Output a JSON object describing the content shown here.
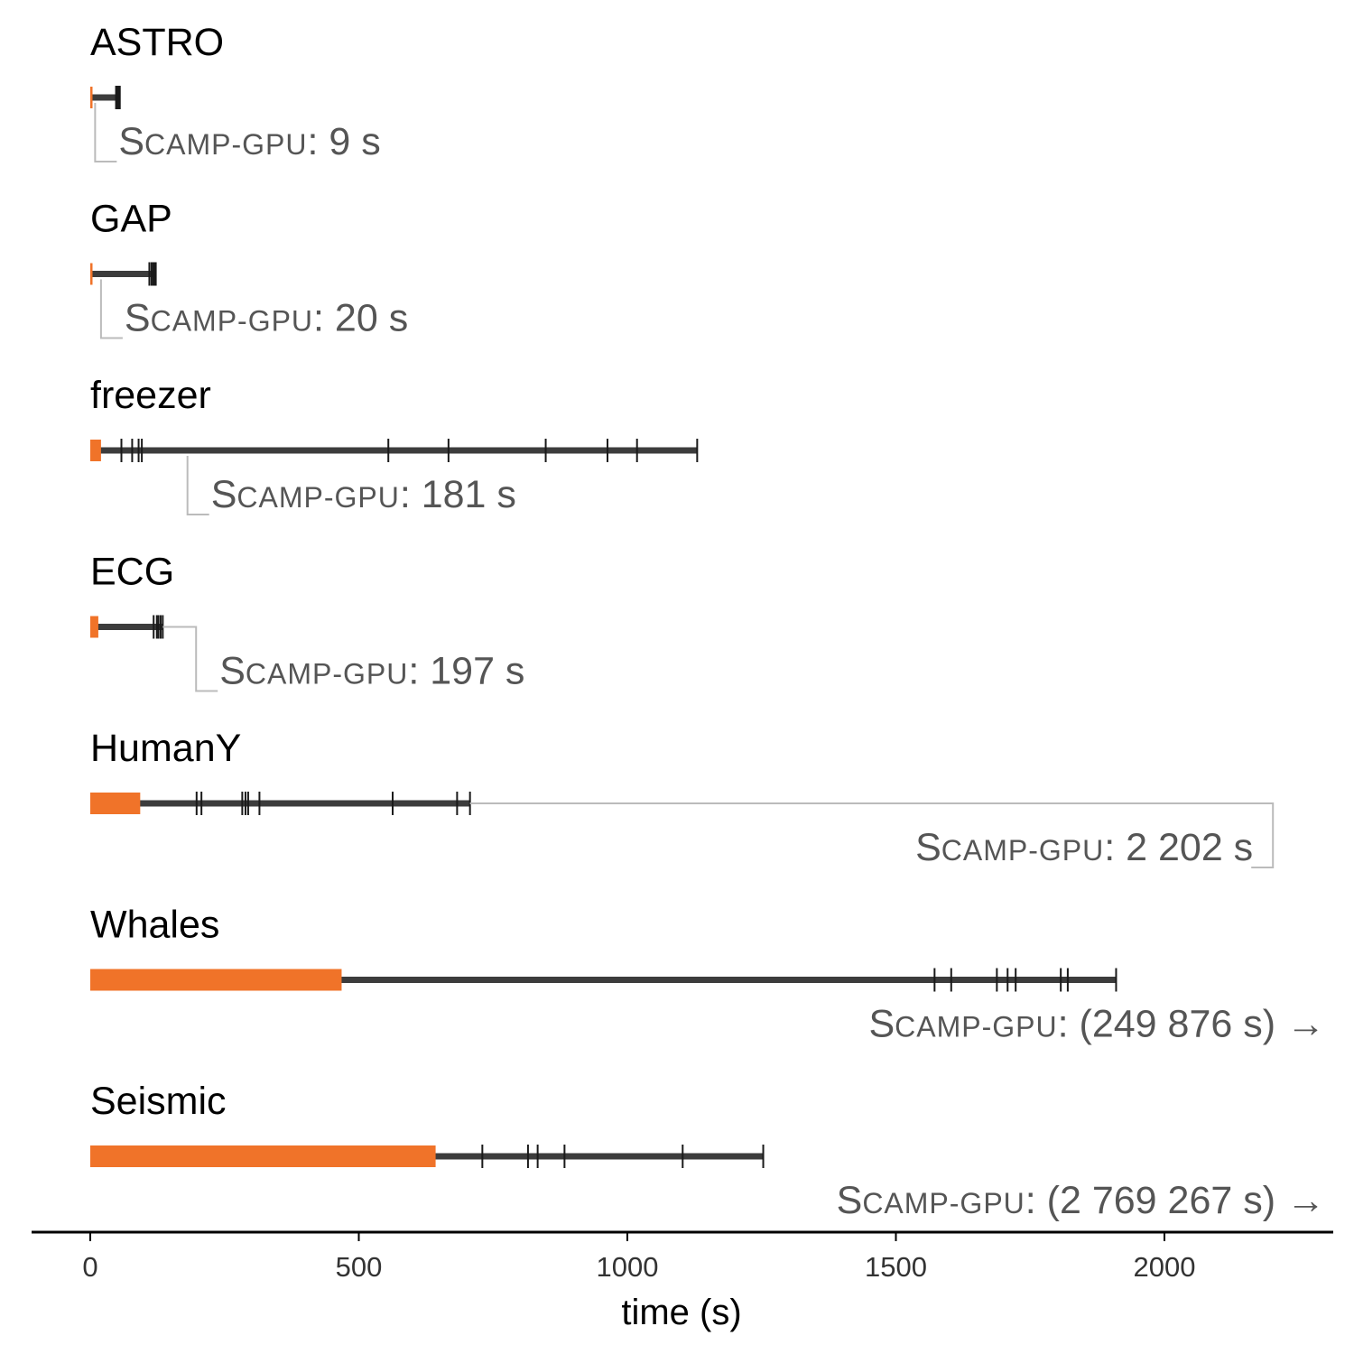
{
  "chart_data": {
    "type": "timeline",
    "xlabel": "time (s)",
    "xlim": [
      -110,
      2310
    ],
    "xticks": [
      0,
      500,
      1000,
      1500,
      2000
    ],
    "tick_labels": [
      "0",
      "500",
      "1000",
      "1500",
      "2000"
    ],
    "colors": {
      "setup": "#f07329",
      "run": "#3c3c3c",
      "ticks": "#1a1a1a",
      "annotation": "#555555",
      "leader": "#bbbbbb",
      "axis": "#000000"
    },
    "series": [
      {
        "name": "ASTRO",
        "setup_end": 2,
        "run_end": 55,
        "marks": [
          48,
          51,
          53,
          55
        ],
        "label_prefix_cap": "S",
        "label_prefix_sc": "CAMP-GPU",
        "label_value": ": 9 s",
        "scamp_time": 9,
        "offscale": false
      },
      {
        "name": "GAP",
        "setup_end": 3,
        "run_end": 122,
        "marks": [
          110,
          114,
          117,
          120,
          122
        ],
        "label_prefix_cap": "S",
        "label_prefix_sc": "CAMP-GPU",
        "label_value": ": 20 s",
        "scamp_time": 20,
        "offscale": false
      },
      {
        "name": "freezer",
        "setup_end": 20,
        "run_end": 1130,
        "marks": [
          58,
          78,
          90,
          96,
          555,
          667,
          848,
          963,
          1018,
          1130
        ],
        "label_prefix_cap": "S",
        "label_prefix_sc": "CAMP-GPU",
        "label_value": ": 181 s",
        "scamp_time": 181,
        "offscale": false
      },
      {
        "name": "ECG",
        "setup_end": 15,
        "run_end": 135,
        "marks": [
          118,
          124,
          127,
          131,
          135
        ],
        "label_prefix_cap": "S",
        "label_prefix_sc": "CAMP-GPU",
        "label_value": ": 197 s",
        "scamp_time": 197,
        "offscale": false
      },
      {
        "name": "HumanY",
        "setup_end": 93,
        "run_end": 707,
        "marks": [
          198,
          207,
          283,
          289,
          294,
          315,
          563,
          683,
          707
        ],
        "label_prefix_cap": "S",
        "label_prefix_sc": "CAMP-GPU",
        "label_value": ": 2 202 s",
        "scamp_time": 2202,
        "offscale": false
      },
      {
        "name": "Whales",
        "setup_end": 468,
        "run_end": 1910,
        "marks": [
          1572,
          1603,
          1688,
          1708,
          1723,
          1807,
          1820,
          1910
        ],
        "label_prefix_cap": "S",
        "label_prefix_sc": "CAMP-GPU",
        "label_value": ": (249 876 s) →",
        "scamp_time": 249876,
        "offscale": true
      },
      {
        "name": "Seismic",
        "setup_end": 643,
        "run_end": 1253,
        "marks": [
          730,
          815,
          833,
          883,
          1103,
          1253
        ],
        "label_prefix_cap": "S",
        "label_prefix_sc": "CAMP-GPU",
        "label_value": ": (2 769 267 s) →",
        "scamp_time": 2769267,
        "offscale": true
      }
    ]
  }
}
